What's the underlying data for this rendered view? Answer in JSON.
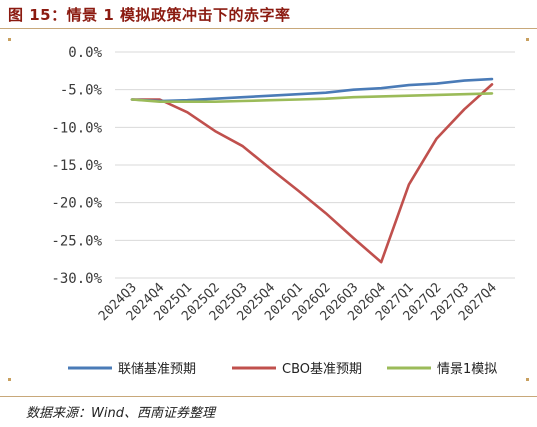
{
  "header": {
    "title": "图 15：情景 1 模拟政策冲击下的赤字率"
  },
  "footer": {
    "source": "数据来源：Wind、西南证券整理"
  },
  "chart_data": {
    "type": "line",
    "x": [
      "2024Q3",
      "2024Q4",
      "2025Q1",
      "2025Q2",
      "2025Q3",
      "2025Q4",
      "2026Q1",
      "2026Q2",
      "2026Q3",
      "2026Q4",
      "2027Q1",
      "2027Q2",
      "2027Q3",
      "2027Q4"
    ],
    "y_ticks": [
      "0.0%",
      "-5.0%",
      "-10.0%",
      "-15.0%",
      "-20.0%",
      "-25.0%",
      "-30.0%"
    ],
    "ylim": [
      -30,
      0
    ],
    "grid": true,
    "legend_position": "bottom",
    "series": [
      {
        "name": "联储基准预期",
        "color": "#4a7bb7",
        "values": [
          -6.3,
          -6.5,
          -6.4,
          -6.2,
          -6.0,
          -5.8,
          -5.6,
          -5.4,
          -5.0,
          -4.8,
          -4.4,
          -4.2,
          -3.8,
          -3.6
        ]
      },
      {
        "name": "CBO基准预期",
        "color": "#c0504d",
        "values": [
          -6.3,
          -6.3,
          -8.0,
          -10.5,
          -12.5,
          -15.5,
          -18.4,
          -21.4,
          -24.7,
          -27.9,
          -17.6,
          -11.5,
          -7.6,
          -4.3
        ]
      },
      {
        "name": "情景1模拟",
        "color": "#9bbb59",
        "values": [
          -6.3,
          -6.6,
          -6.6,
          -6.6,
          -6.5,
          -6.4,
          -6.3,
          -6.2,
          -6.0,
          -5.9,
          -5.8,
          -5.7,
          -5.6,
          -5.5
        ]
      }
    ]
  }
}
